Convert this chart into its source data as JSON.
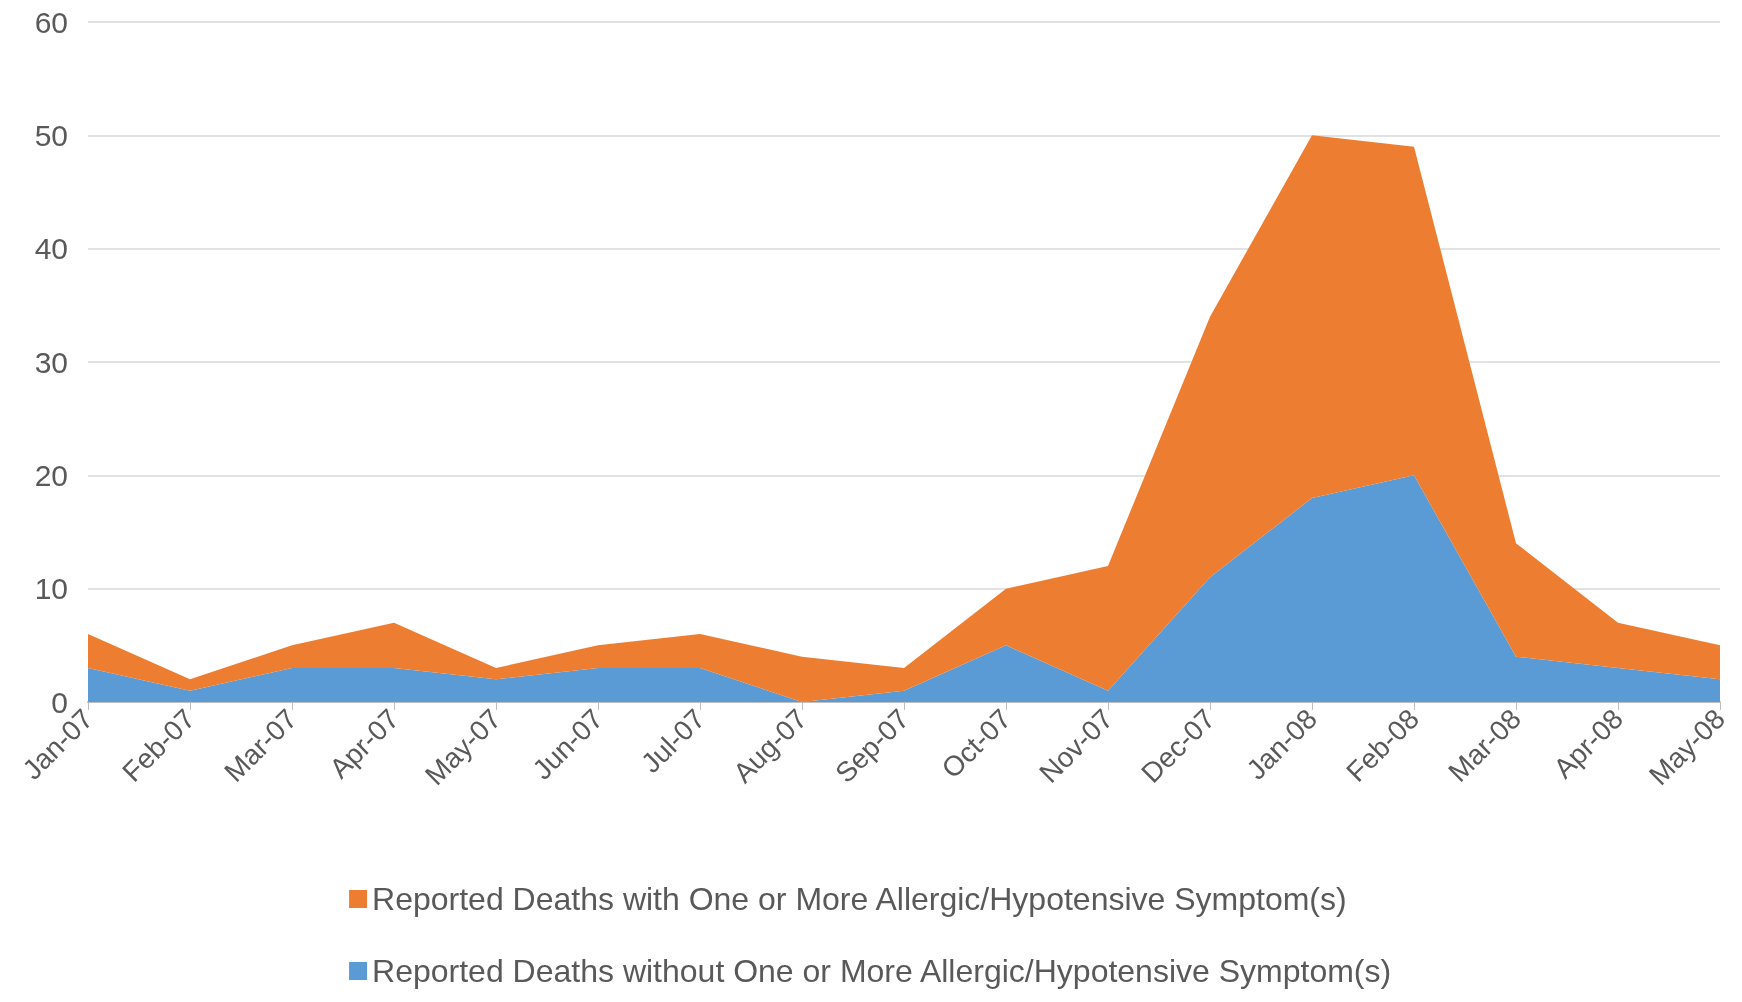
{
  "chart_data": {
    "type": "area",
    "stacked": true,
    "categories": [
      "Jan-07",
      "Feb-07",
      "Mar-07",
      "Apr-07",
      "May-07",
      "Jun-07",
      "Jul-07",
      "Aug-07",
      "Sep-07",
      "Oct-07",
      "Nov-07",
      "Dec-07",
      "Jan-08",
      "Feb-08",
      "Mar-08",
      "Apr-08",
      "May-08"
    ],
    "series": [
      {
        "name": "Reported Deaths without One or More Allergic/Hypotensive Symptom(s)",
        "color": "#5b9bd5",
        "values": [
          3,
          1,
          3,
          3,
          2,
          3,
          3,
          0,
          1,
          5,
          1,
          11,
          18,
          20,
          4,
          3,
          2
        ]
      },
      {
        "name": "Reported Deaths with One or More Allergic/Hypotensive Symptom(s)",
        "color": "#ed7d31",
        "values": [
          3,
          1,
          2,
          4,
          1,
          2,
          3,
          4,
          2,
          5,
          11,
          23,
          32,
          29,
          10,
          4,
          3
        ]
      }
    ],
    "ylim": [
      0,
      60
    ],
    "yticks": [
      0,
      10,
      20,
      30,
      40,
      50,
      60
    ],
    "grid": "y",
    "legend": "bottom"
  }
}
